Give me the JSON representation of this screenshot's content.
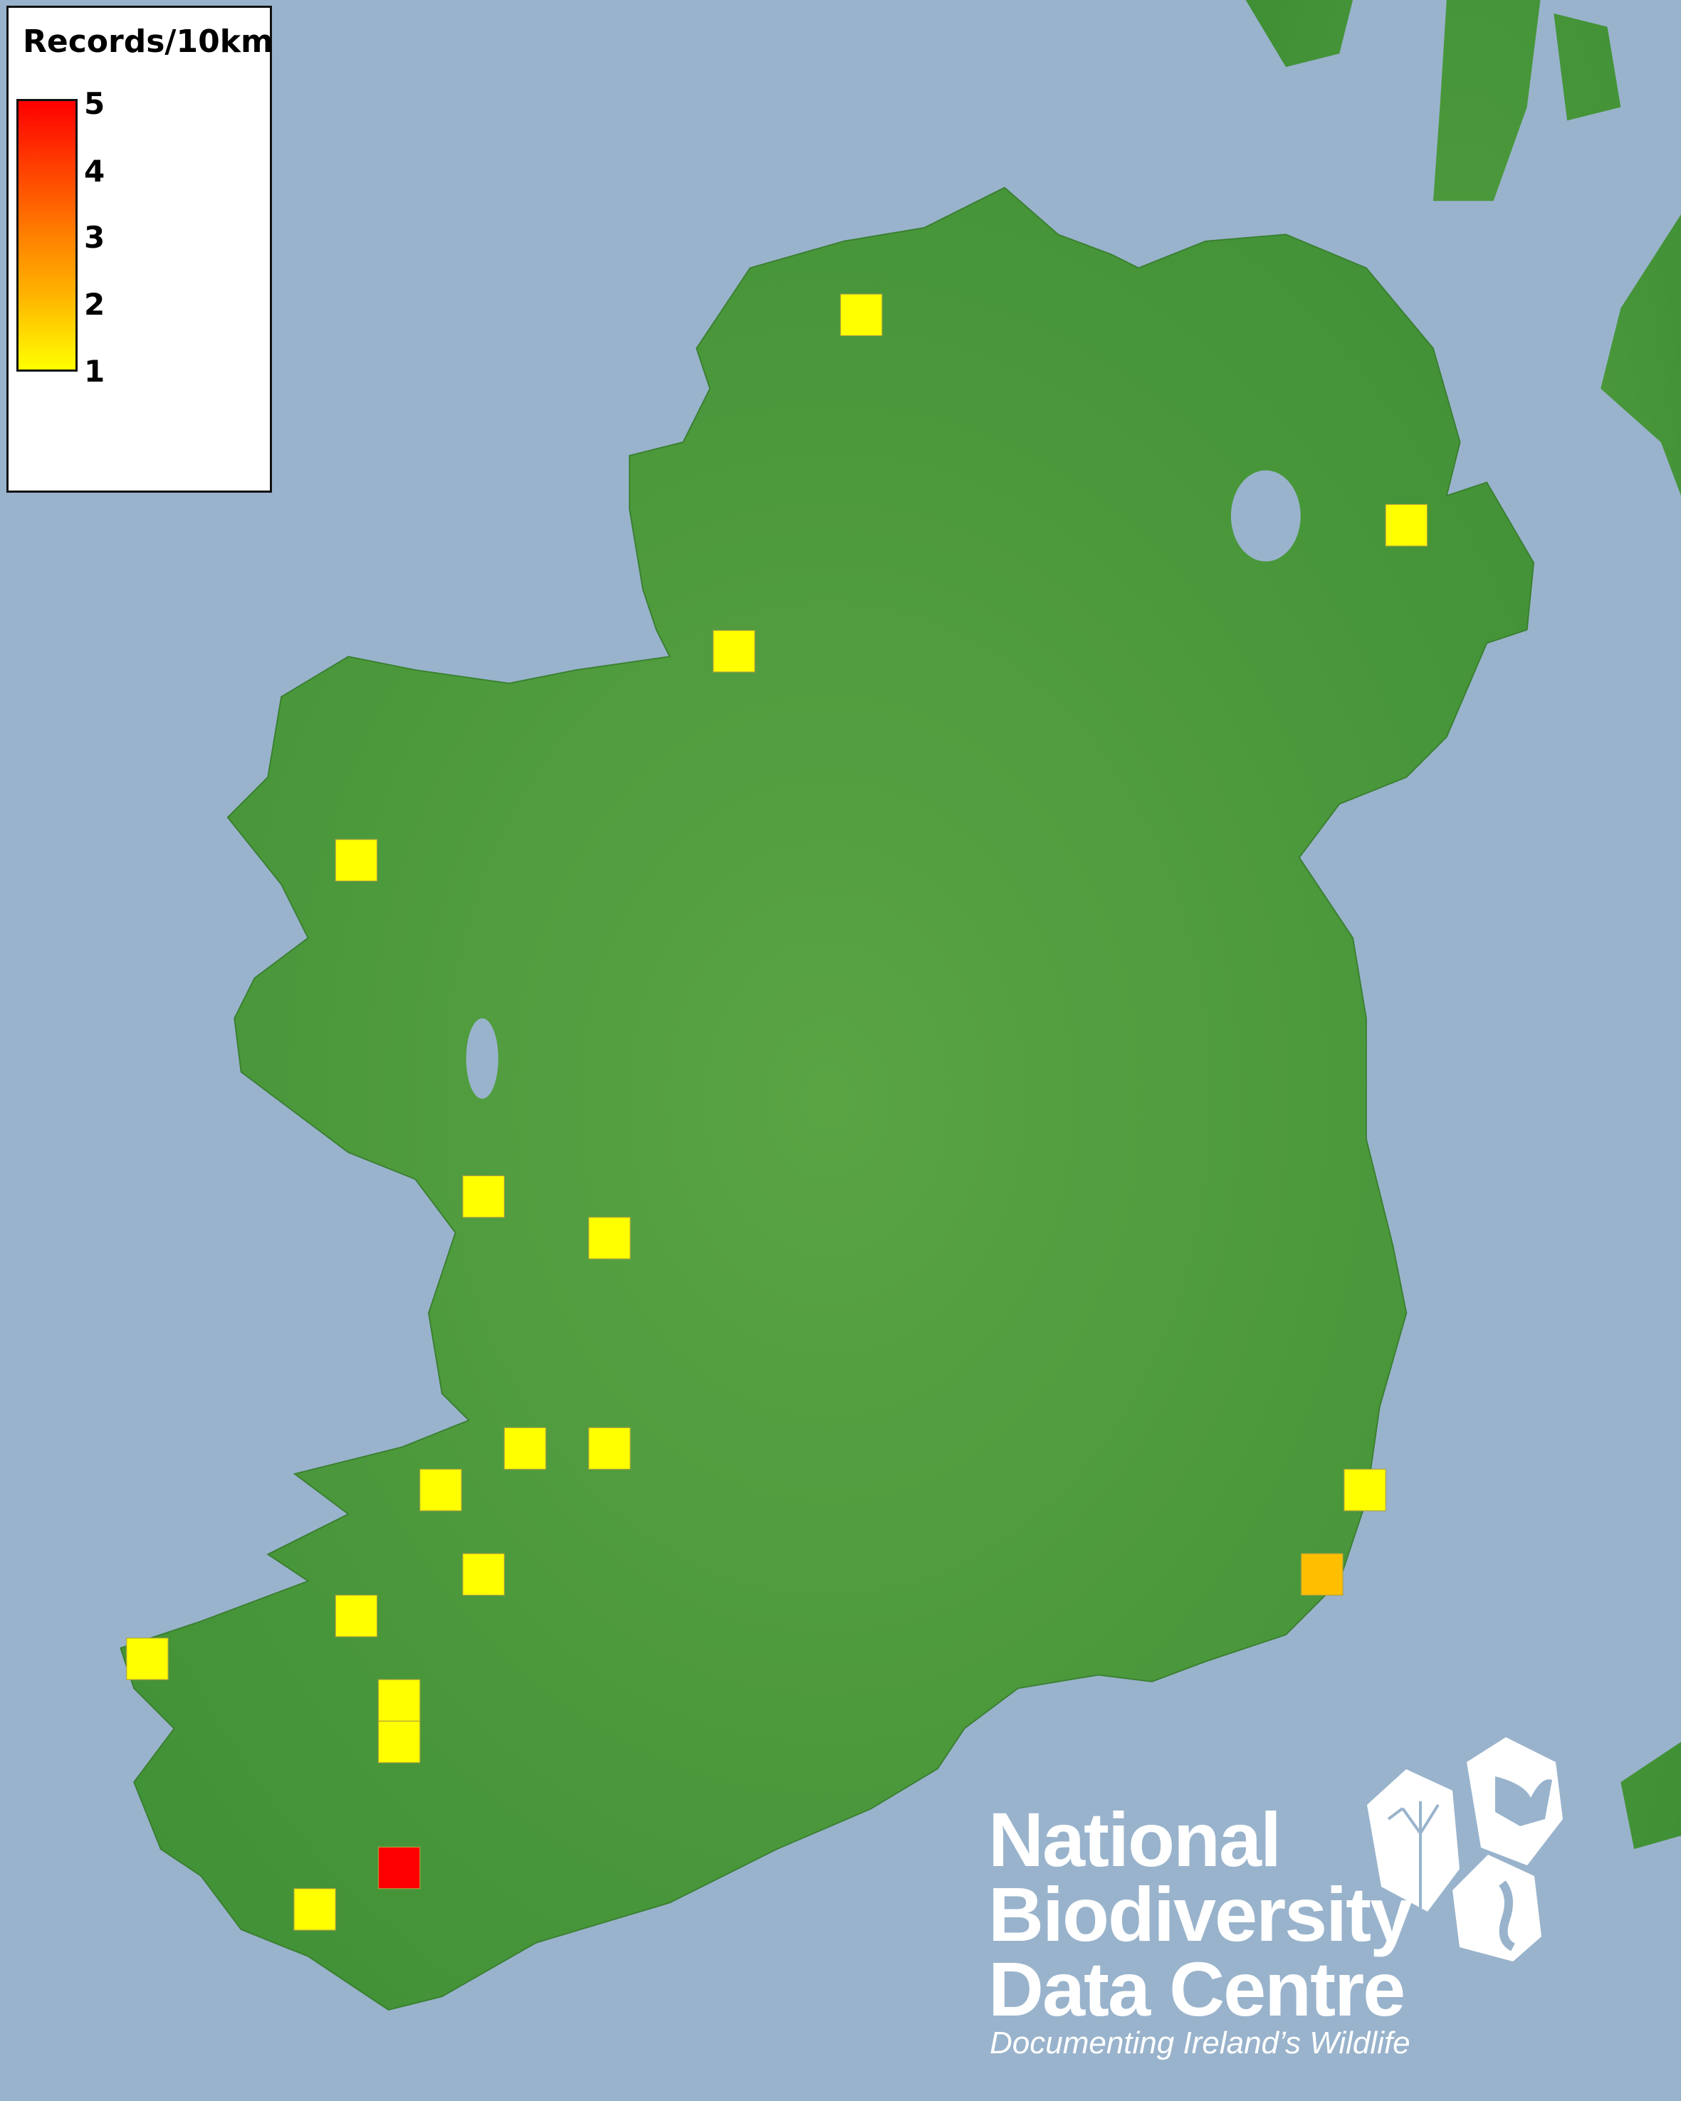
{
  "legend": {
    "title": "Records/10km",
    "ticks": [
      "5",
      "4",
      "3",
      "2",
      "1"
    ],
    "range": [
      1,
      5
    ],
    "color_low": "#ffff00",
    "color_high": "#ff0000"
  },
  "map": {
    "sea_color": "#99b3cc",
    "land_color": "#4f9a3c",
    "squares": [
      {
        "value": 1
      },
      {
        "value": 1
      },
      {
        "value": 1
      },
      {
        "value": 1
      },
      {
        "value": 1
      },
      {
        "value": 1
      },
      {
        "value": 1
      },
      {
        "value": 1
      },
      {
        "value": 1
      },
      {
        "value": 1
      },
      {
        "value": 1
      },
      {
        "value": 2
      },
      {
        "value": 1
      },
      {
        "value": 1
      },
      {
        "value": 1
      },
      {
        "value": 1
      },
      {
        "value": 5
      },
      {
        "value": 1
      }
    ]
  },
  "logo": {
    "line1": "National",
    "line2": "Biodiversity",
    "line3": "Data Centre",
    "tagline": "Documenting Ireland’s Wildlife",
    "icons": [
      "plant-icon",
      "butterfly-icon",
      "seahorse-icon"
    ]
  }
}
